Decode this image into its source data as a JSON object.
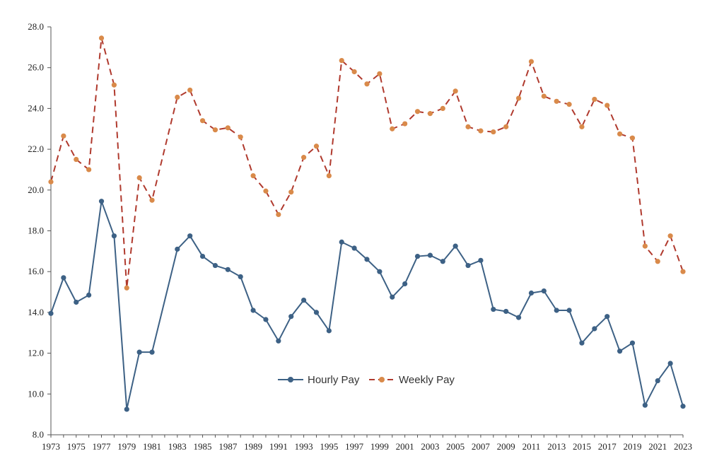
{
  "colors": {
    "hourly": "#3d6185",
    "weekly_line": "#b03a2e",
    "weekly_marker": "#d98a4a",
    "axis": "#555555"
  },
  "chart_data": {
    "type": "line",
    "title": "",
    "xlabel": "",
    "ylabel": "",
    "ylim": [
      8.0,
      28.0
    ],
    "y_ticks": [
      "8.0",
      "10.0",
      "12.0",
      "14.0",
      "16.0",
      "18.0",
      "20.0",
      "22.0",
      "24.0",
      "26.0",
      "28.0"
    ],
    "x_tick_labels": [
      "1973",
      "1975",
      "1977",
      "1979",
      "1981",
      "1983",
      "1985",
      "1987",
      "1989",
      "1991",
      "1993",
      "1995",
      "1997",
      "1999",
      "2001",
      "2003",
      "2005",
      "2007",
      "2009",
      "2011",
      "2013",
      "2015",
      "2017",
      "2019",
      "2021",
      "2023"
    ],
    "grid": false,
    "legend_position": "bottom-center",
    "x": [
      1973,
      1974,
      1975,
      1976,
      1977,
      1978,
      1979,
      1980,
      1981,
      1982,
      1983,
      1984,
      1985,
      1986,
      1987,
      1988,
      1989,
      1990,
      1991,
      1992,
      1993,
      1994,
      1995,
      1996,
      1997,
      1998,
      1999,
      2000,
      2001,
      2002,
      2003,
      2004,
      2005,
      2006,
      2007,
      2008,
      2009,
      2010,
      2011,
      2012,
      2013,
      2014,
      2015,
      2016,
      2017,
      2018,
      2019,
      2020,
      2021,
      2022,
      2023
    ],
    "series": [
      {
        "name": "Hourly Pay",
        "style": "solid",
        "values": [
          13.95,
          15.7,
          14.5,
          14.85,
          19.45,
          17.75,
          9.25,
          12.05,
          12.05,
          null,
          17.1,
          17.75,
          16.75,
          16.3,
          16.1,
          15.75,
          14.1,
          13.65,
          12.6,
          13.8,
          14.6,
          14.0,
          13.1,
          17.45,
          17.15,
          16.6,
          16.0,
          14.75,
          15.4,
          16.75,
          16.8,
          16.5,
          17.25,
          16.3,
          16.55,
          14.15,
          14.05,
          13.75,
          14.95,
          15.05,
          14.1,
          14.1,
          12.5,
          13.2,
          13.8,
          12.1,
          12.5,
          9.45,
          10.65,
          11.5,
          9.4
        ]
      },
      {
        "name": "Weekly Pay",
        "style": "dashed",
        "values": [
          20.4,
          22.65,
          21.5,
          21.0,
          27.45,
          25.15,
          15.2,
          20.6,
          19.5,
          null,
          24.55,
          24.9,
          23.4,
          22.95,
          23.05,
          22.6,
          20.7,
          19.95,
          18.8,
          19.9,
          21.6,
          22.15,
          20.7,
          26.35,
          25.8,
          25.2,
          25.7,
          23.0,
          23.25,
          23.85,
          23.75,
          24.0,
          24.85,
          23.1,
          22.9,
          22.85,
          23.1,
          24.5,
          26.3,
          24.6,
          24.35,
          24.2,
          23.1,
          24.45,
          24.15,
          22.75,
          22.55,
          17.25,
          16.5,
          17.75,
          16.0
        ]
      }
    ]
  }
}
